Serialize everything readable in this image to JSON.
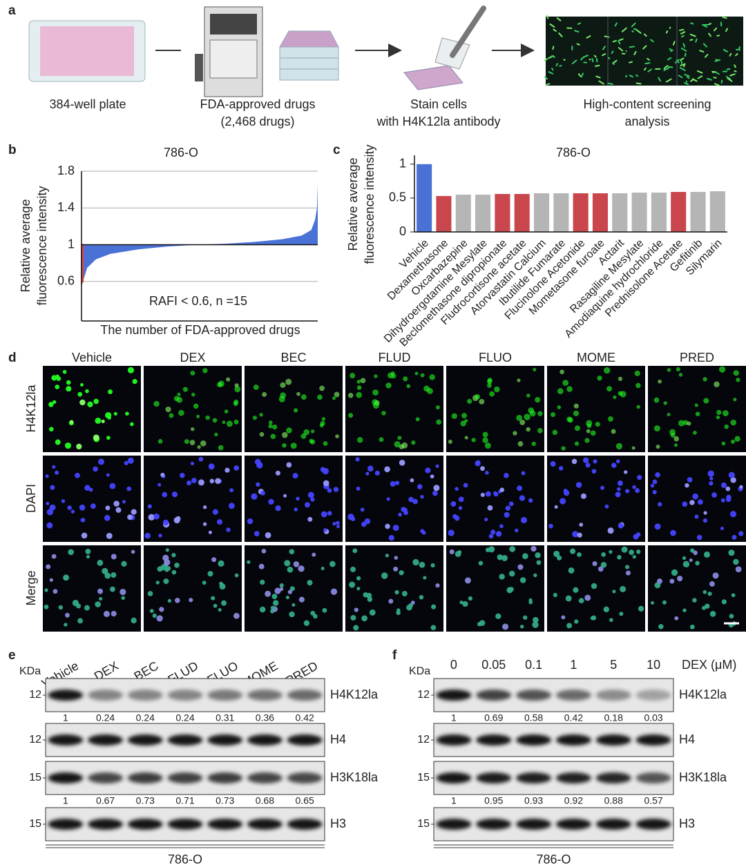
{
  "panel_a": {
    "label": "a",
    "steps": [
      [
        "384-well plate"
      ],
      [
        "FDA-approved drugs",
        "(2,468 drugs)"
      ],
      [
        "Stain cells",
        "with H4K12la antibody"
      ],
      [
        "High-content screening",
        "analysis"
      ]
    ]
  },
  "chart_data": [
    {
      "type": "area",
      "panel_label": "b",
      "title": "786-O",
      "ylabel": [
        "Relative average",
        "fluorescence intensity"
      ],
      "xlabel": "The number of FDA-approved drugs",
      "annotation": "RAFI < 0.6, n =15",
      "x": [
        1,
        15,
        60,
        150,
        300,
        600,
        900,
        1200,
        1500,
        1800,
        2100,
        2300,
        2400,
        2440,
        2460,
        2468
      ],
      "values": [
        0.58,
        0.6,
        0.75,
        0.84,
        0.9,
        0.95,
        0.98,
        1.0,
        1.01,
        1.03,
        1.06,
        1.1,
        1.16,
        1.27,
        1.4,
        1.66
      ],
      "xlim": [
        0,
        2468
      ],
      "ylim": [
        0.17,
        1.8
      ],
      "yticks": [
        0.6,
        1,
        1.4,
        1.8
      ],
      "baseline": 1,
      "highlight_x_max": 15,
      "color": "#4a72d6",
      "highlight_color": "#d84a4a",
      "grid": true
    },
    {
      "type": "bar",
      "panel_label": "c",
      "title": "786-O",
      "ylabel": [
        "Relative average",
        "fluorescence intensity"
      ],
      "categories": [
        "Vehicle",
        "Dexamethasone",
        "Oxcarbazepine",
        "Dihydroergotamine Mesylate",
        "Beclomethasone dipropionate",
        "Fludrocortisone acetate",
        "Atorvastatin Calcium",
        "Ibutilide Fumarate",
        "Flucinolone Acetonide",
        "Mometasone furoate",
        "Actarit",
        "Rasagiline Mesylate",
        "Amodiaquine hydrochloride",
        "Prednisolone Acetate",
        "Gefitinib",
        "Silymarin"
      ],
      "values": [
        1,
        0.53,
        0.55,
        0.55,
        0.56,
        0.56,
        0.57,
        0.57,
        0.57,
        0.57,
        0.57,
        0.58,
        0.58,
        0.59,
        0.59,
        0.6
      ],
      "colors": [
        "#4a72d6",
        "#c9474c",
        "#b5b5b5",
        "#b5b5b5",
        "#c9474c",
        "#c9474c",
        "#b5b5b5",
        "#b5b5b5",
        "#c9474c",
        "#c9474c",
        "#b5b5b5",
        "#b5b5b5",
        "#b5b5b5",
        "#c9474c",
        "#b5b5b5",
        "#b5b5b5"
      ],
      "ylim": [
        0,
        1.13
      ],
      "yticks": [
        0,
        0.5,
        1
      ]
    }
  ],
  "panel_d": {
    "label": "d",
    "columns": [
      "Vehicle",
      "DEX",
      "BEC",
      "FLUD",
      "FLUO",
      "MOME",
      "PRED"
    ],
    "rows": [
      "H4K12la",
      "DAPI",
      "Merge"
    ]
  },
  "panel_e": {
    "label": "e",
    "unit": "KDa",
    "lanes": [
      "Vehicle",
      "DEX",
      "BEC",
      "FLUD",
      "FLUO",
      "MOME",
      "PRED"
    ],
    "blots": [
      {
        "marker": 12,
        "name": "H4K12la",
        "quant": [
          1,
          0.24,
          0.24,
          0.24,
          0.31,
          0.36,
          0.42
        ]
      },
      {
        "marker": 12,
        "name": "H4"
      },
      {
        "marker": 15,
        "name": "H3K18la",
        "quant": [
          1,
          0.67,
          0.73,
          0.71,
          0.73,
          0.68,
          0.65
        ]
      },
      {
        "marker": 15,
        "name": "H3"
      }
    ],
    "cell_line": "786-O"
  },
  "panel_f": {
    "label": "f",
    "unit": "KDa",
    "treatment": "DEX (μM)",
    "lanes": [
      "0",
      "0.05",
      "0.1",
      "1",
      "5",
      "10"
    ],
    "blots": [
      {
        "marker": 12,
        "name": "H4K12la",
        "quant": [
          1,
          0.69,
          0.58,
          0.42,
          0.18,
          0.03
        ]
      },
      {
        "marker": 12,
        "name": "H4"
      },
      {
        "marker": 15,
        "name": "H3K18la",
        "quant": [
          1,
          0.95,
          0.93,
          0.92,
          0.88,
          0.57
        ]
      },
      {
        "marker": 15,
        "name": "H3"
      }
    ],
    "cell_line": "786-O"
  }
}
